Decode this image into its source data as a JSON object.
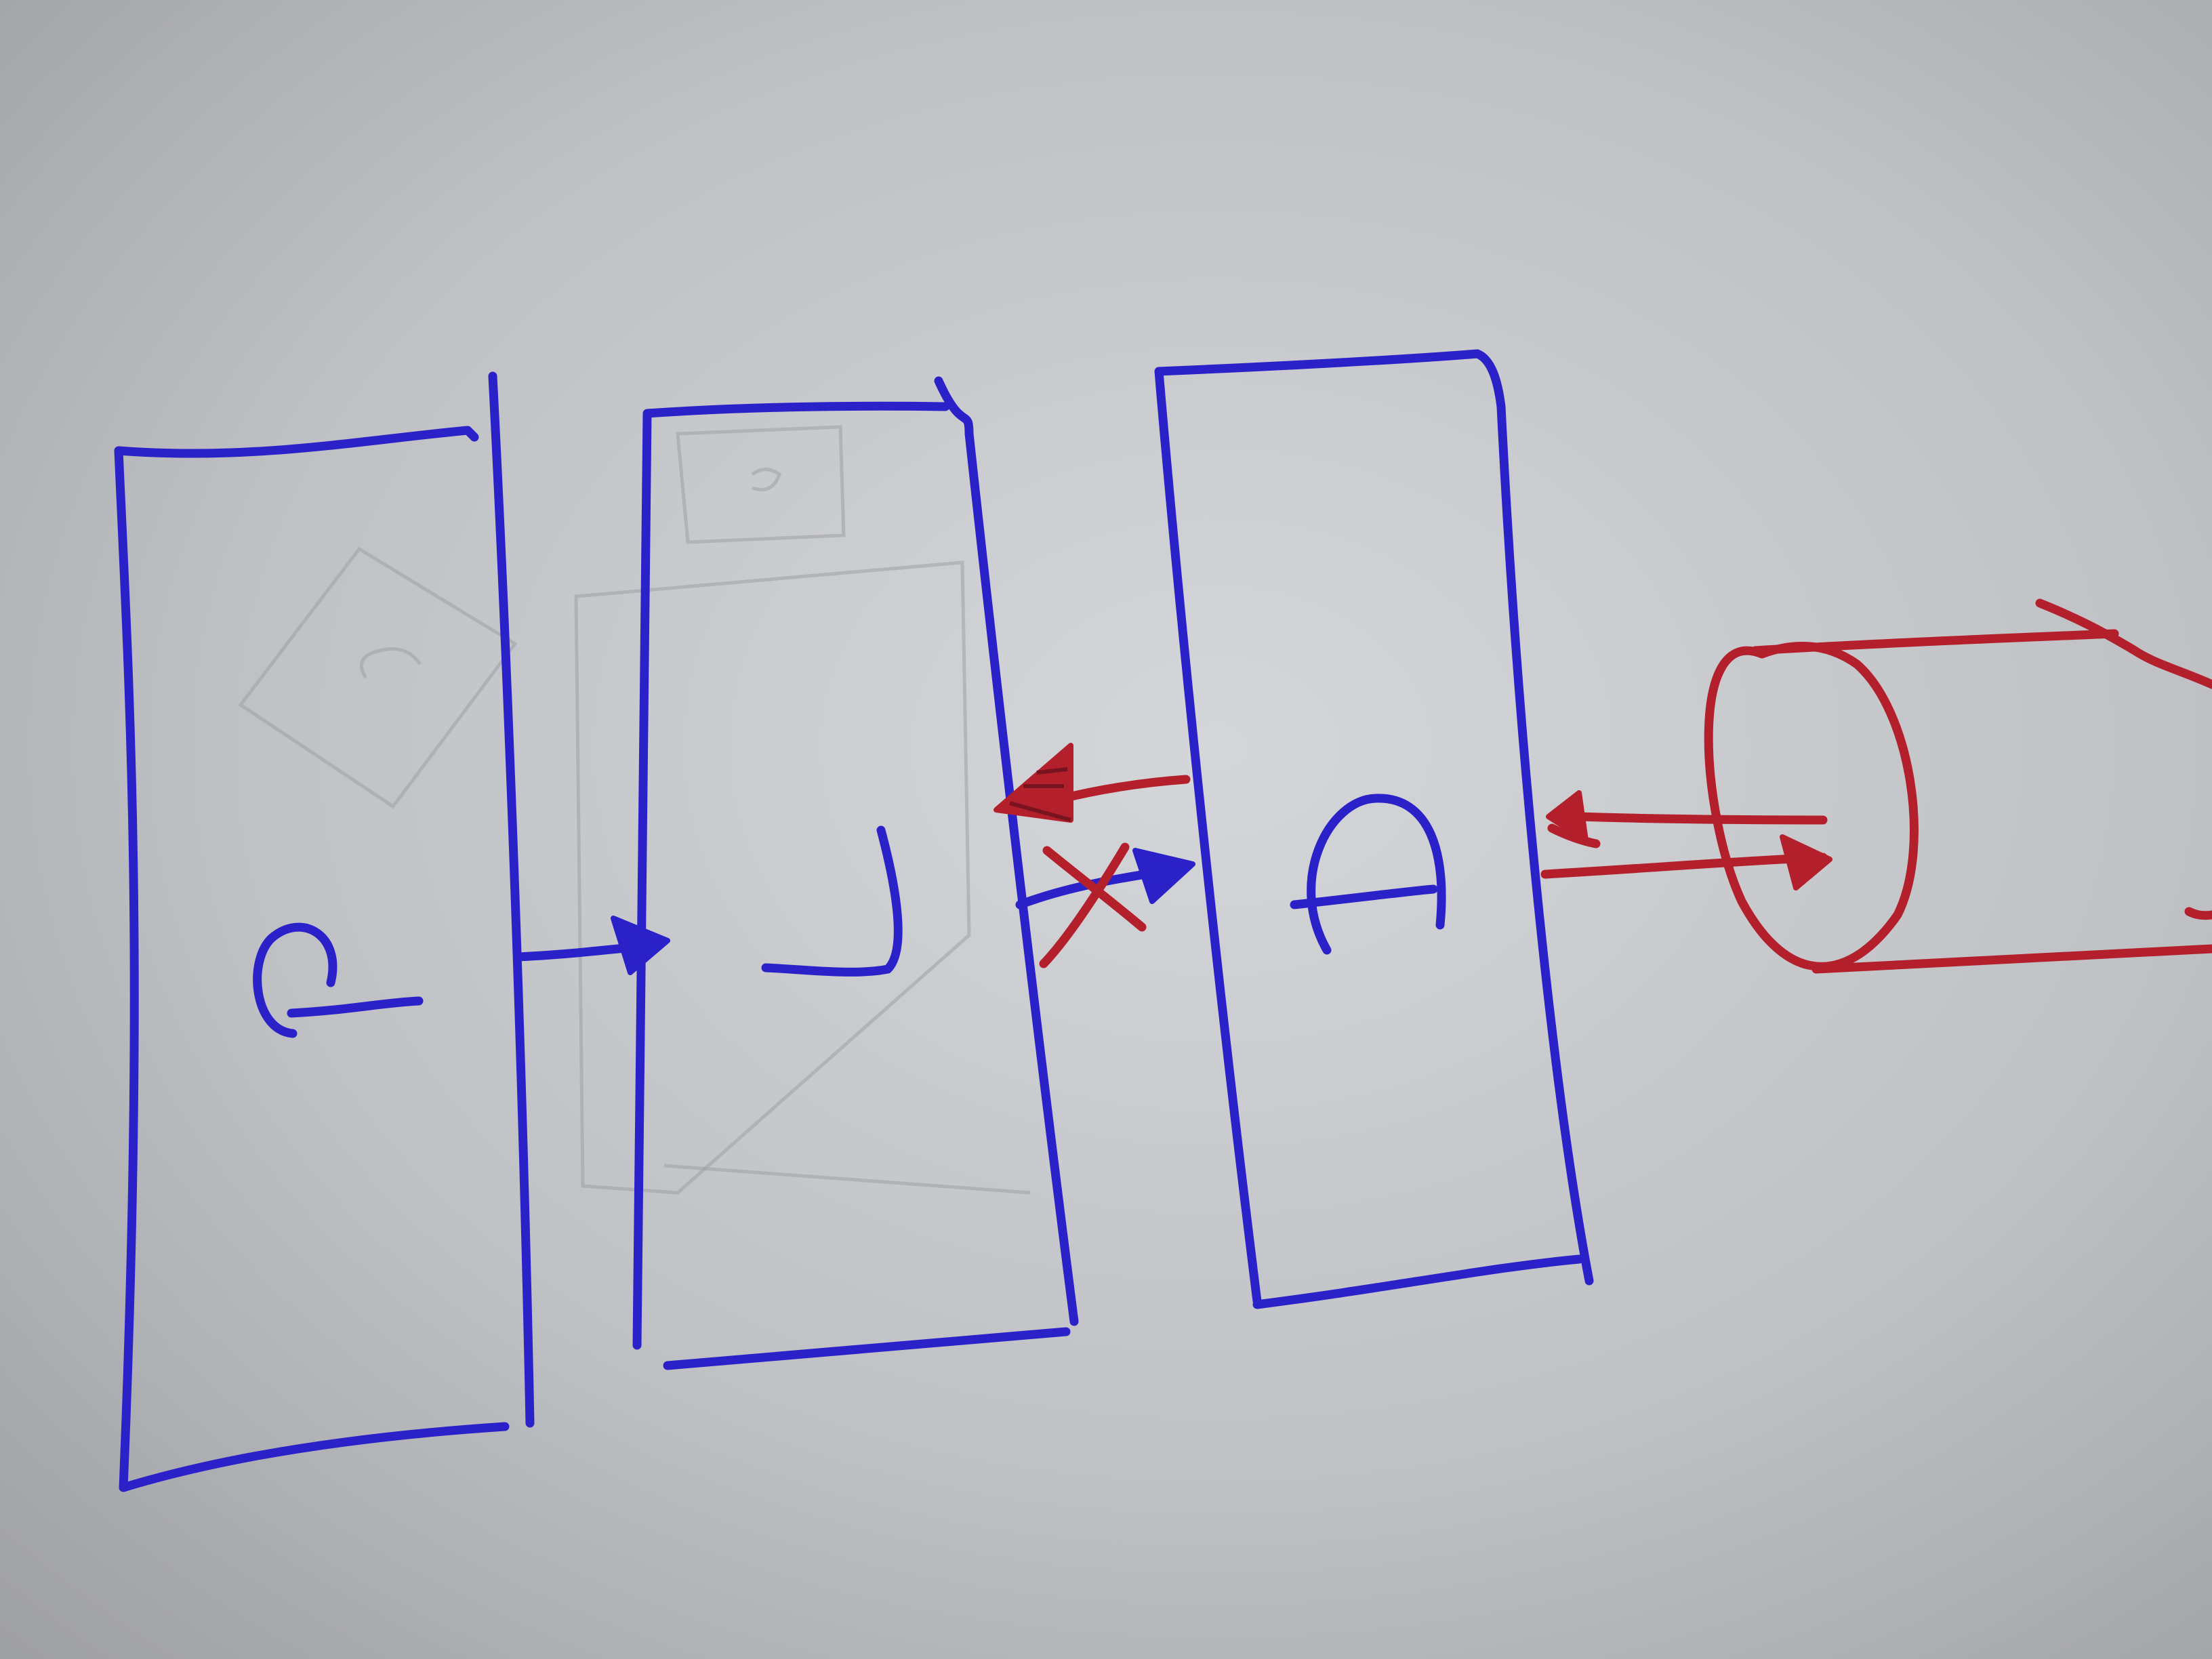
{
  "diagram": {
    "type": "hand-drawn box diagram",
    "colors": {
      "paper": "#b9bbbf",
      "blue_ink": "#2b21c9",
      "red_ink": "#b3202c"
    },
    "nodes": [
      {
        "id": "box-1",
        "shape": "rectangle",
        "glyph": "P",
        "ink": "blue"
      },
      {
        "id": "box-2",
        "shape": "rectangle",
        "glyph": "J",
        "ink": "blue"
      },
      {
        "id": "box-3",
        "shape": "rectangle",
        "glyph": "A",
        "ink": "blue"
      },
      {
        "id": "store",
        "shape": "cylinder",
        "ink": "red"
      }
    ],
    "edges": [
      {
        "from": "box-1",
        "to": "box-2",
        "ink": "blue"
      },
      {
        "from": "box-2",
        "to": "box-3",
        "ink": "blue",
        "crossed_out": true
      },
      {
        "from": "box-3",
        "to": "box-2",
        "ink": "red"
      },
      {
        "from": "box-3",
        "to": "store",
        "ink": "red"
      },
      {
        "from": "store",
        "to": "box-3",
        "ink": "red"
      }
    ]
  }
}
